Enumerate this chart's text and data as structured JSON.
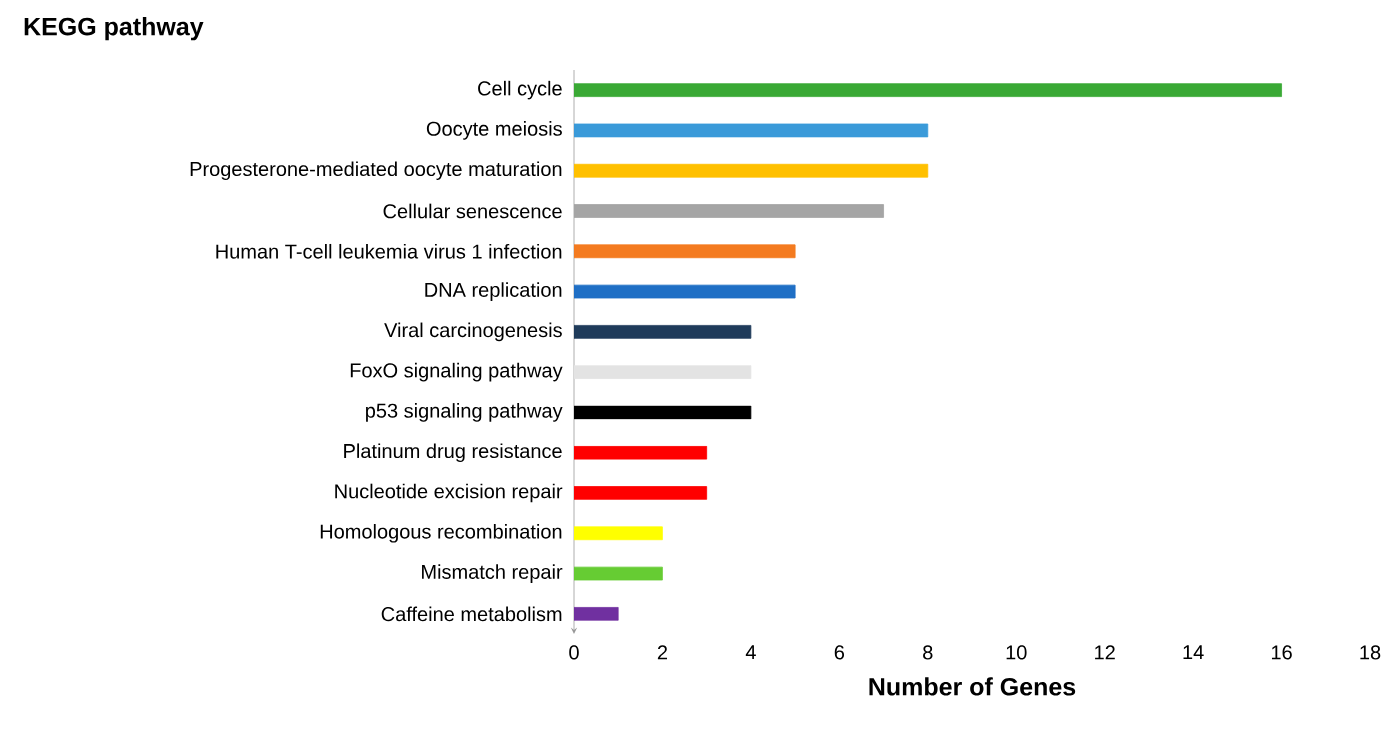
{
  "chart_data": {
    "type": "bar",
    "orientation": "horizontal",
    "title": "KEGG pathway",
    "xlabel": "Number of Genes",
    "categories": [
      "Cell cycle",
      "Oocyte meiosis",
      "Progesterone-mediated oocyte maturation",
      "Cellular senescence",
      "Human T-cell leukemia virus 1 infection",
      "DNA replication",
      "Viral carcinogenesis",
      "FoxO signaling pathway",
      "p53 signaling pathway",
      "Platinum drug resistance",
      "Nucleotide excision repair",
      "Homologous recombination",
      "Mismatch repair",
      "Caffeine metabolism"
    ],
    "values": [
      16,
      8,
      8,
      7,
      5,
      5,
      4,
      4,
      4,
      3,
      3,
      2,
      2,
      1
    ],
    "colors": [
      "#3aa935",
      "#3a9ad9",
      "#ffc000",
      "#a5a5a5",
      "#f47b20",
      "#1f6fc5",
      "#1f3b5a",
      "#e3e3e3",
      "#000000",
      "#ff0000",
      "#ff0000",
      "#ffff00",
      "#66cc33",
      "#7030a0"
    ],
    "xlim": [
      0,
      18
    ],
    "xticks": [
      0,
      2,
      4,
      6,
      8,
      10,
      12,
      14,
      16,
      18
    ]
  }
}
